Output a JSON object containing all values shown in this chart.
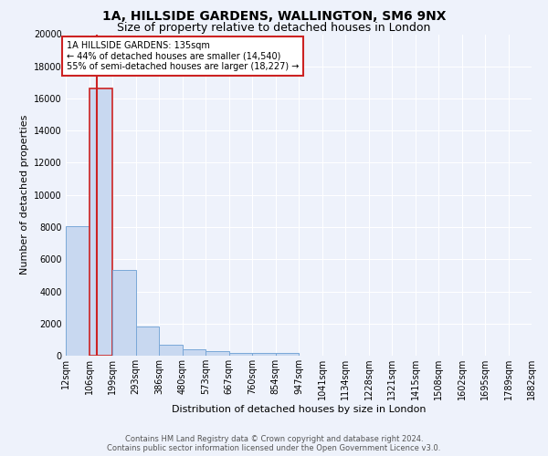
{
  "title": "1A, HILLSIDE GARDENS, WALLINGTON, SM6 9NX",
  "subtitle": "Size of property relative to detached houses in London",
  "xlabel": "Distribution of detached houses by size in London",
  "ylabel": "Number of detached properties",
  "footer_line1": "Contains HM Land Registry data © Crown copyright and database right 2024.",
  "footer_line2": "Contains public sector information licensed under the Open Government Licence v3.0.",
  "annotation_title": "1A HILLSIDE GARDENS: 135sqm",
  "annotation_line2": "← 44% of detached houses are smaller (14,540)",
  "annotation_line3": "55% of semi-detached houses are larger (18,227) →",
  "bar_edges": [
    12,
    106,
    199,
    293,
    386,
    480,
    573,
    667,
    760,
    854,
    947,
    1041,
    1134,
    1228,
    1321,
    1415,
    1508,
    1602,
    1695,
    1789,
    1882
  ],
  "bar_heights": [
    8050,
    16600,
    5350,
    1800,
    700,
    380,
    270,
    190,
    170,
    150,
    0,
    0,
    0,
    0,
    0,
    0,
    0,
    0,
    0,
    0
  ],
  "bar_color": "#c8d8f0",
  "bar_edgecolor": "#7aa8d8",
  "highlighted_bar_index": 1,
  "highlight_bar_edgecolor": "#cc2222",
  "red_line_x": 135,
  "ylim": [
    0,
    20000
  ],
  "yticks": [
    0,
    2000,
    4000,
    6000,
    8000,
    10000,
    12000,
    14000,
    16000,
    18000,
    20000
  ],
  "background_color": "#eef2fb",
  "grid_color": "#ffffff",
  "title_fontsize": 10,
  "subtitle_fontsize": 9,
  "axis_label_fontsize": 8,
  "tick_fontsize": 7,
  "tick_labels": [
    "12sqm",
    "106sqm",
    "199sqm",
    "293sqm",
    "386sqm",
    "480sqm",
    "573sqm",
    "667sqm",
    "760sqm",
    "854sqm",
    "947sqm",
    "1041sqm",
    "1134sqm",
    "1228sqm",
    "1321sqm",
    "1415sqm",
    "1508sqm",
    "1602sqm",
    "1695sqm",
    "1789sqm",
    "1882sqm"
  ]
}
